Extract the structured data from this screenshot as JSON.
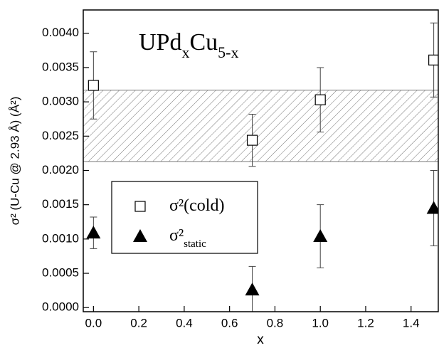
{
  "chart_data": {
    "type": "scatter",
    "annotation": {
      "base": "UPd",
      "sub1": "x",
      "mid": "Cu",
      "sub2": "5-x"
    },
    "x_label": "x",
    "y_label": "σ² (U-Cu @ 2.93 Å) (Å²)",
    "xlim": [
      -0.045,
      1.52
    ],
    "ylim": [
      -6e-05,
      0.00434
    ],
    "xticks": [
      {
        "value": 0,
        "label": "0.0"
      },
      {
        "value": 0.2,
        "label": "0.2"
      },
      {
        "value": 0.4,
        "label": "0.4"
      },
      {
        "value": 0.6,
        "label": "0.6"
      },
      {
        "value": 0.8,
        "label": "0.8"
      },
      {
        "value": 1,
        "label": "1.0"
      },
      {
        "value": 1.2,
        "label": "1.2"
      },
      {
        "value": 1.4,
        "label": "1.4"
      }
    ],
    "yticks": [
      {
        "value": 0,
        "label": "0.0000"
      },
      {
        "value": 0.0005,
        "label": "0.0005"
      },
      {
        "value": 0.001,
        "label": "0.0010"
      },
      {
        "value": 0.0015,
        "label": "0.0015"
      },
      {
        "value": 0.002,
        "label": "0.0020"
      },
      {
        "value": 0.0025,
        "label": "0.0025"
      },
      {
        "value": 0.003,
        "label": "0.0030"
      },
      {
        "value": 0.0035,
        "label": "0.0035"
      },
      {
        "value": 0.004,
        "label": "0.0040"
      }
    ],
    "band": [
      0.00213,
      0.00317
    ],
    "series": [
      {
        "name": "σ²(cold)",
        "marker": "square",
        "color": "#000000",
        "x": [
          0,
          0.7,
          1,
          1.5
        ],
        "values": [
          0.00324,
          0.00244,
          0.00303,
          0.00361
        ],
        "errors": [
          0.00049,
          0.00038,
          0.00047,
          0.00054
        ]
      },
      {
        "name": "σ²",
        "subscript": "static",
        "marker": "triangle",
        "color": "#000000",
        "x": [
          0,
          0.7,
          1,
          1.5
        ],
        "values": [
          0.00109,
          0.00026,
          0.00104,
          0.00145
        ],
        "errors": [
          0.00023,
          0.00034,
          0.00046,
          0.00055
        ]
      }
    ]
  }
}
